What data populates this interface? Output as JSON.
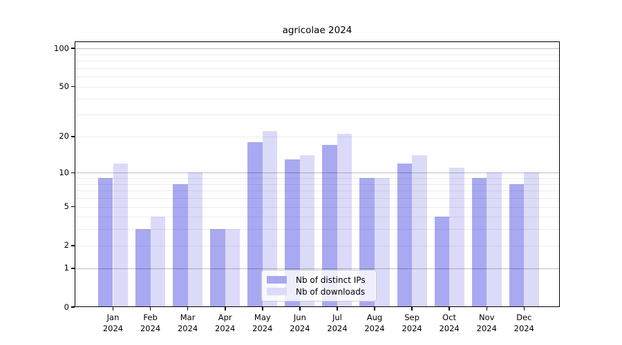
{
  "chart_data": {
    "type": "bar",
    "title": "agricolae 2024",
    "categories": [
      "Jan 2024",
      "Feb 2024",
      "Mar 2024",
      "Apr 2024",
      "May 2024",
      "Jun 2024",
      "Jul 2024",
      "Aug 2024",
      "Sep 2024",
      "Oct 2024",
      "Nov 2024",
      "Dec 2024"
    ],
    "series": [
      {
        "name": "Nb of distinct IPs",
        "color": "#a9a9f2",
        "values": [
          9,
          3,
          8,
          3,
          18,
          13,
          17,
          9,
          12,
          4,
          9,
          8
        ]
      },
      {
        "name": "Nb of downloads",
        "color": "#dbdbf9",
        "values": [
          12,
          4,
          10,
          3,
          22,
          14,
          21,
          9,
          14,
          11,
          10,
          10
        ]
      }
    ],
    "xlabel": "",
    "ylabel": "",
    "y_scale": "log10(1+x)",
    "yticks": [
      0,
      1,
      2,
      5,
      10,
      20,
      50,
      100
    ],
    "ylim": [
      0,
      114
    ],
    "grid": "horizontal, minor at 2-9/20-90, major at 1/10/100",
    "legend_position": "inside-bottom-center"
  }
}
